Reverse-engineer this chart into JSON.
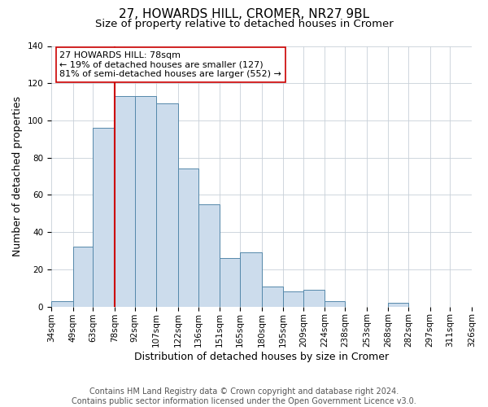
{
  "title": "27, HOWARDS HILL, CROMER, NR27 9BL",
  "subtitle": "Size of property relative to detached houses in Cromer",
  "xlabel": "Distribution of detached houses by size in Cromer",
  "ylabel": "Number of detached properties",
  "bar_edges": [
    34,
    49,
    63,
    78,
    92,
    107,
    122,
    136,
    151,
    165,
    180,
    195,
    209,
    224,
    238,
    253,
    268,
    282,
    297,
    311,
    326
  ],
  "bar_heights": [
    3,
    32,
    96,
    113,
    113,
    109,
    74,
    55,
    26,
    29,
    11,
    8,
    9,
    3,
    0,
    0,
    2,
    0,
    0,
    0
  ],
  "bar_color": "#ccdcec",
  "bar_edge_color": "#5588aa",
  "reference_line_x": 78,
  "reference_line_color": "#cc0000",
  "annotation_text": "27 HOWARDS HILL: 78sqm\n← 19% of detached houses are smaller (127)\n81% of semi-detached houses are larger (552) →",
  "annotation_box_color": "#ffffff",
  "annotation_box_edge_color": "#cc0000",
  "ylim": [
    0,
    140
  ],
  "yticks": [
    0,
    20,
    40,
    60,
    80,
    100,
    120,
    140
  ],
  "tick_labels": [
    "34sqm",
    "49sqm",
    "63sqm",
    "78sqm",
    "92sqm",
    "107sqm",
    "122sqm",
    "136sqm",
    "151sqm",
    "165sqm",
    "180sqm",
    "195sqm",
    "209sqm",
    "224sqm",
    "238sqm",
    "253sqm",
    "268sqm",
    "282sqm",
    "297sqm",
    "311sqm",
    "326sqm"
  ],
  "footer_text": "Contains HM Land Registry data © Crown copyright and database right 2024.\nContains public sector information licensed under the Open Government Licence v3.0.",
  "background_color": "#ffffff",
  "plot_background_color": "#ffffff",
  "grid_color": "#c8d0d8",
  "title_fontsize": 11,
  "subtitle_fontsize": 9.5,
  "axis_label_fontsize": 9,
  "tick_fontsize": 7.5,
  "annotation_fontsize": 8,
  "footer_fontsize": 7
}
